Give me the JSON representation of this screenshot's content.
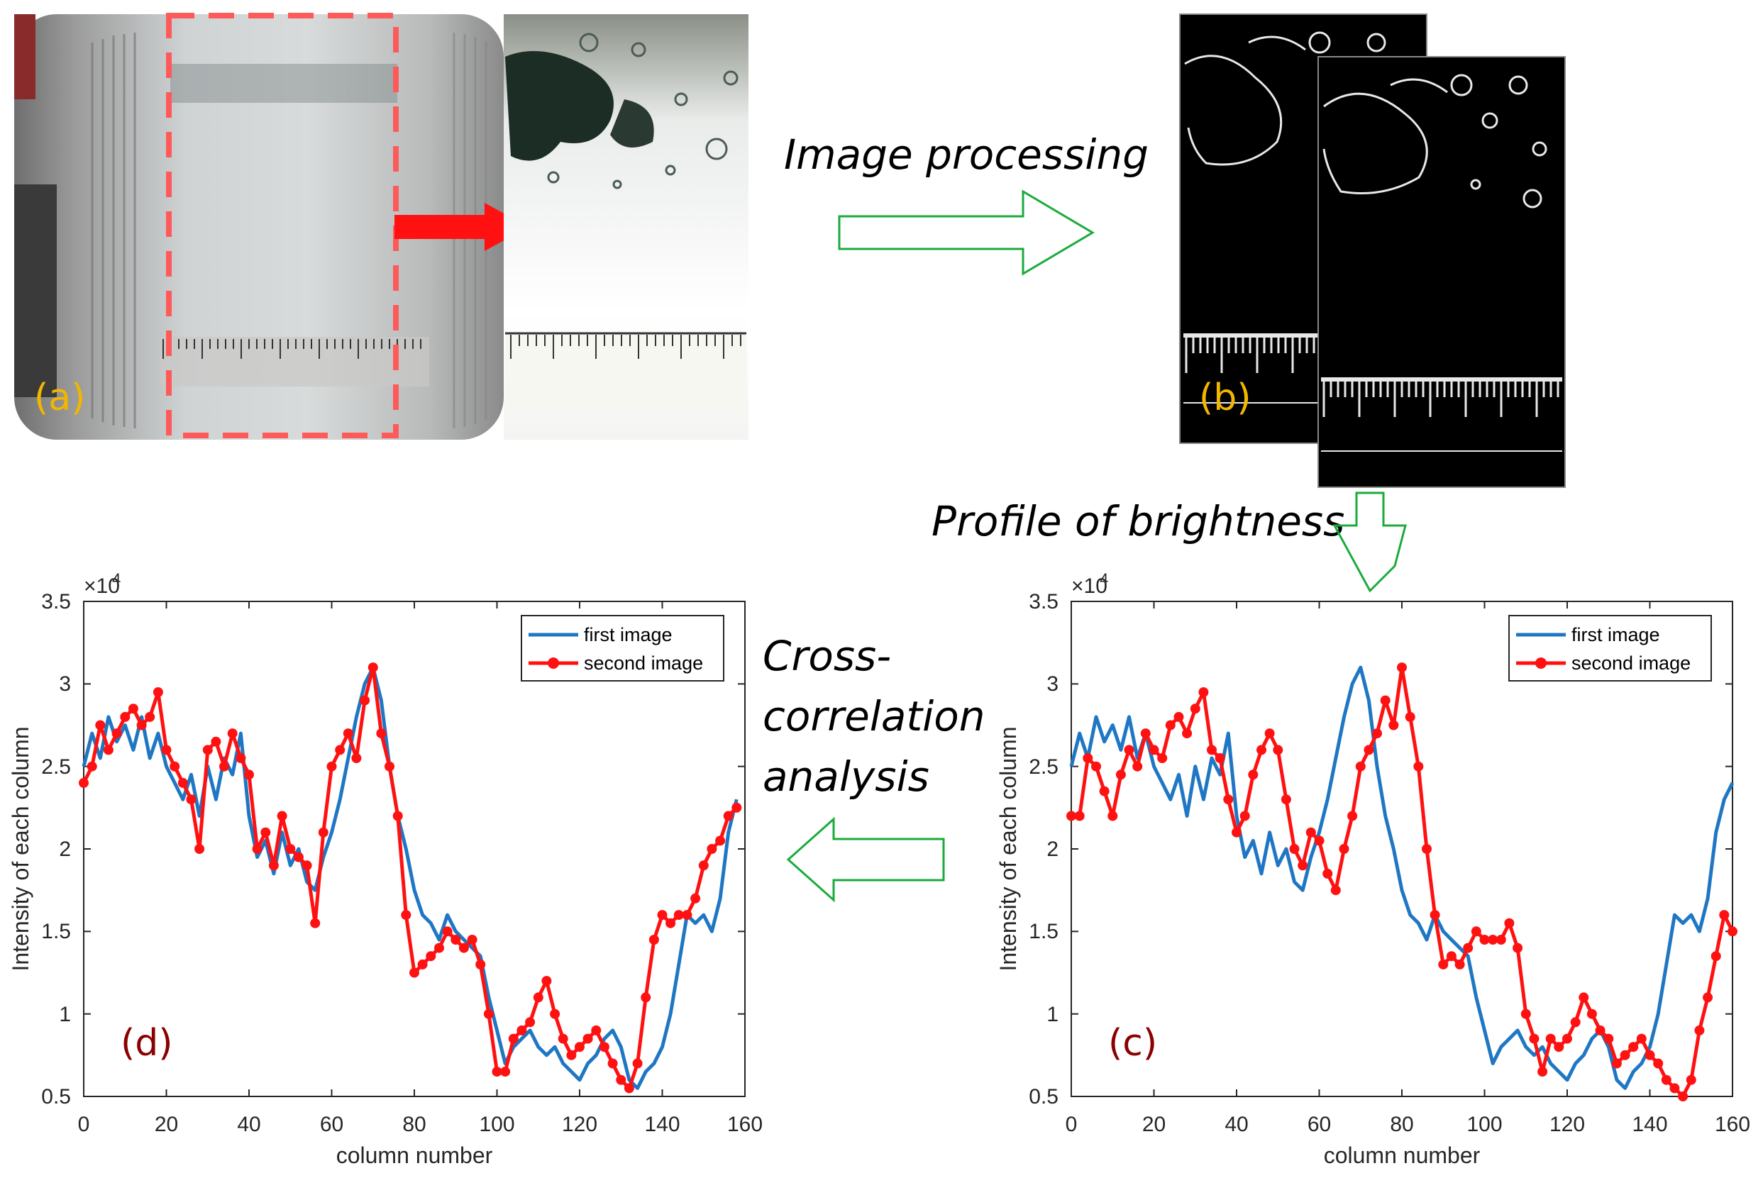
{
  "panels": {
    "a": "(a)",
    "b": "(b)",
    "c": "(c)",
    "d": "(d)"
  },
  "steps": {
    "image_processing": "Image processing",
    "profile": "Profile of brightness",
    "cross_lines": [
      "Cross-",
      "correlation",
      "analysis"
    ]
  },
  "colors": {
    "panel_label": "#f2b600",
    "plot_label": "#8b0000",
    "flow_arrow": "#1aab3c",
    "series_first": "#1f77c4",
    "series_second": "#ff1111",
    "dashed_box": "#ff5a5a"
  },
  "chart_data": [
    {
      "type": "line",
      "name": "plot-c",
      "panel": "(c)",
      "xlabel": "column number",
      "ylabel": "Intensity of each column",
      "exponent_label": "×10",
      "exponent": "4",
      "xlim": [
        0,
        160
      ],
      "ylim": [
        0.5,
        3.5
      ],
      "xticks": [
        "0",
        "20",
        "40",
        "60",
        "80",
        "100",
        "120",
        "140",
        "160"
      ],
      "yticks": [
        "0.5",
        "1",
        "1.5",
        "2",
        "2.5",
        "3",
        "3.5"
      ],
      "legend": [
        "first image",
        "second image"
      ],
      "legend_position": "top-right",
      "series": [
        {
          "name": "first image",
          "x": [
            0,
            2,
            4,
            6,
            8,
            10,
            12,
            14,
            16,
            18,
            20,
            22,
            24,
            26,
            28,
            30,
            32,
            34,
            36,
            38,
            40,
            42,
            44,
            46,
            48,
            50,
            52,
            54,
            56,
            58,
            60,
            62,
            64,
            66,
            68,
            70,
            72,
            74,
            76,
            78,
            80,
            82,
            84,
            86,
            88,
            90,
            92,
            94,
            96,
            98,
            100,
            102,
            104,
            106,
            108,
            110,
            112,
            114,
            116,
            118,
            120,
            122,
            124,
            126,
            128,
            130,
            132,
            134,
            136,
            138,
            140,
            142,
            144,
            146,
            148,
            150,
            152,
            154,
            156,
            158,
            160
          ],
          "y": [
            2.5,
            2.7,
            2.55,
            2.8,
            2.65,
            2.75,
            2.6,
            2.8,
            2.55,
            2.7,
            2.5,
            2.4,
            2.3,
            2.45,
            2.2,
            2.5,
            2.3,
            2.55,
            2.45,
            2.7,
            2.2,
            1.95,
            2.05,
            1.85,
            2.1,
            1.9,
            2.0,
            1.8,
            1.75,
            1.95,
            2.1,
            2.3,
            2.55,
            2.8,
            3.0,
            3.1,
            2.9,
            2.5,
            2.2,
            2.0,
            1.75,
            1.6,
            1.55,
            1.45,
            1.6,
            1.5,
            1.45,
            1.4,
            1.35,
            1.1,
            0.9,
            0.7,
            0.8,
            0.85,
            0.9,
            0.8,
            0.75,
            0.8,
            0.7,
            0.65,
            0.6,
            0.7,
            0.75,
            0.85,
            0.9,
            0.8,
            0.6,
            0.55,
            0.65,
            0.7,
            0.8,
            1.0,
            1.3,
            1.6,
            1.55,
            1.6,
            1.5,
            1.7,
            2.1,
            2.3,
            2.4
          ]
        },
        {
          "name": "second image",
          "x": [
            0,
            2,
            4,
            6,
            8,
            10,
            12,
            14,
            16,
            18,
            20,
            22,
            24,
            26,
            28,
            30,
            32,
            34,
            36,
            38,
            40,
            42,
            44,
            46,
            48,
            50,
            52,
            54,
            56,
            58,
            60,
            62,
            64,
            66,
            68,
            70,
            72,
            74,
            76,
            78,
            80,
            82,
            84,
            86,
            88,
            90,
            92,
            94,
            96,
            98,
            100,
            102,
            104,
            106,
            108,
            110,
            112,
            114,
            116,
            118,
            120,
            122,
            124,
            126,
            128,
            130,
            132,
            134,
            136,
            138,
            140,
            142,
            144,
            146,
            148,
            150,
            152,
            154,
            156,
            158,
            160
          ],
          "y": [
            2.2,
            2.2,
            2.55,
            2.5,
            2.35,
            2.2,
            2.45,
            2.6,
            2.5,
            2.7,
            2.6,
            2.55,
            2.75,
            2.8,
            2.7,
            2.85,
            2.95,
            2.6,
            2.55,
            2.3,
            2.1,
            2.2,
            2.45,
            2.6,
            2.7,
            2.6,
            2.3,
            2.0,
            1.9,
            2.1,
            2.05,
            1.85,
            1.75,
            2.0,
            2.2,
            2.5,
            2.6,
            2.7,
            2.9,
            2.75,
            3.1,
            2.8,
            2.5,
            2.0,
            1.6,
            1.3,
            1.35,
            1.3,
            1.4,
            1.5,
            1.45,
            1.45,
            1.45,
            1.55,
            1.4,
            1.0,
            0.85,
            0.65,
            0.85,
            0.8,
            0.85,
            0.95,
            1.1,
            1.0,
            0.9,
            0.85,
            0.7,
            0.75,
            0.8,
            0.85,
            0.75,
            0.7,
            0.6,
            0.55,
            0.5,
            0.6,
            0.9,
            1.1,
            1.35,
            1.6,
            1.5
          ]
        }
      ]
    },
    {
      "type": "line",
      "name": "plot-d",
      "panel": "(d)",
      "xlabel": "column number",
      "ylabel": "Intensity of each column",
      "exponent_label": "×10",
      "exponent": "4",
      "xlim": [
        0,
        160
      ],
      "ylim": [
        0.5,
        3.5
      ],
      "xticks": [
        "0",
        "20",
        "40",
        "60",
        "80",
        "100",
        "120",
        "140",
        "160"
      ],
      "yticks": [
        "0.5",
        "1",
        "1.5",
        "2",
        "2.5",
        "3",
        "3.5"
      ],
      "legend": [
        "first image",
        "second image"
      ],
      "legend_position": "top-right",
      "series": [
        {
          "name": "first image",
          "x": [
            0,
            2,
            4,
            6,
            8,
            10,
            12,
            14,
            16,
            18,
            20,
            22,
            24,
            26,
            28,
            30,
            32,
            34,
            36,
            38,
            40,
            42,
            44,
            46,
            48,
            50,
            52,
            54,
            56,
            58,
            60,
            62,
            64,
            66,
            68,
            70,
            72,
            74,
            76,
            78,
            80,
            82,
            84,
            86,
            88,
            90,
            92,
            94,
            96,
            98,
            100,
            102,
            104,
            106,
            108,
            110,
            112,
            114,
            116,
            118,
            120,
            122,
            124,
            126,
            128,
            130,
            132,
            134,
            136,
            138,
            140,
            142,
            144,
            146,
            148,
            150,
            152,
            154,
            156,
            158
          ],
          "y": [
            2.5,
            2.7,
            2.55,
            2.8,
            2.65,
            2.75,
            2.6,
            2.8,
            2.55,
            2.7,
            2.5,
            2.4,
            2.3,
            2.45,
            2.2,
            2.5,
            2.3,
            2.55,
            2.45,
            2.7,
            2.2,
            1.95,
            2.05,
            1.85,
            2.1,
            1.9,
            2.0,
            1.8,
            1.75,
            1.95,
            2.1,
            2.3,
            2.55,
            2.8,
            3.0,
            3.1,
            2.9,
            2.5,
            2.2,
            2.0,
            1.75,
            1.6,
            1.55,
            1.45,
            1.6,
            1.5,
            1.45,
            1.4,
            1.35,
            1.1,
            0.9,
            0.7,
            0.8,
            0.85,
            0.9,
            0.8,
            0.75,
            0.8,
            0.7,
            0.65,
            0.6,
            0.7,
            0.75,
            0.85,
            0.9,
            0.8,
            0.6,
            0.55,
            0.65,
            0.7,
            0.8,
            1.0,
            1.3,
            1.6,
            1.55,
            1.6,
            1.5,
            1.7,
            2.1,
            2.3
          ]
        },
        {
          "name": "second image",
          "x": [
            0,
            2,
            4,
            6,
            8,
            10,
            12,
            14,
            16,
            18,
            20,
            22,
            24,
            26,
            28,
            30,
            32,
            34,
            36,
            38,
            40,
            42,
            44,
            46,
            48,
            50,
            52,
            54,
            56,
            58,
            60,
            62,
            64,
            66,
            68,
            70,
            72,
            74,
            76,
            78,
            80,
            82,
            84,
            86,
            88,
            90,
            92,
            94,
            96,
            98,
            100,
            102,
            104,
            106,
            108,
            110,
            112,
            114,
            116,
            118,
            120,
            122,
            124,
            126,
            128,
            130,
            132,
            134,
            136,
            138,
            140,
            142,
            144,
            146,
            148,
            150,
            152,
            154,
            156,
            158
          ],
          "y": [
            2.4,
            2.5,
            2.75,
            2.6,
            2.7,
            2.8,
            2.85,
            2.75,
            2.8,
            2.95,
            2.6,
            2.5,
            2.4,
            2.3,
            2.0,
            2.6,
            2.65,
            2.5,
            2.7,
            2.55,
            2.45,
            2.0,
            2.1,
            1.9,
            2.2,
            2.0,
            1.95,
            1.9,
            1.55,
            2.1,
            2.5,
            2.6,
            2.7,
            2.55,
            2.9,
            3.1,
            2.7,
            2.5,
            2.2,
            1.6,
            1.25,
            1.3,
            1.35,
            1.4,
            1.5,
            1.45,
            1.4,
            1.45,
            1.3,
            1.0,
            0.65,
            0.65,
            0.85,
            0.9,
            0.95,
            1.1,
            1.2,
            1.0,
            0.85,
            0.75,
            0.8,
            0.85,
            0.9,
            0.8,
            0.7,
            0.6,
            0.55,
            0.7,
            1.1,
            1.45,
            1.6,
            1.55,
            1.6,
            1.6,
            1.7,
            1.9,
            2.0,
            2.05,
            2.2,
            2.25
          ]
        }
      ]
    }
  ]
}
